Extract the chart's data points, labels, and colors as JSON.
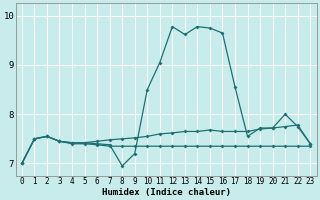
{
  "xlabel": "Humidex (Indice chaleur)",
  "background_color": "#c8ecec",
  "line_color": "#1e7070",
  "grid_color": "#ffffff",
  "xlim": [
    -0.5,
    23.5
  ],
  "ylim": [
    6.75,
    10.25
  ],
  "yticks": [
    7,
    8,
    9,
    10
  ],
  "xticks": [
    0,
    1,
    2,
    3,
    4,
    5,
    6,
    7,
    8,
    9,
    10,
    11,
    12,
    13,
    14,
    15,
    16,
    17,
    18,
    19,
    20,
    21,
    22,
    23
  ],
  "series1_x": [
    0,
    1,
    2,
    3,
    4,
    5,
    6,
    7,
    8,
    9,
    10,
    11,
    12,
    13,
    14,
    15,
    16,
    17,
    18,
    19,
    20,
    21,
    22,
    23
  ],
  "series1_y": [
    7.0,
    7.5,
    7.55,
    7.45,
    7.42,
    7.42,
    7.4,
    7.38,
    6.95,
    7.2,
    8.5,
    9.05,
    9.78,
    9.62,
    9.78,
    9.75,
    9.65,
    8.55,
    7.55,
    7.72,
    7.72,
    8.0,
    7.75,
    7.4
  ],
  "series2_x": [
    0,
    1,
    2,
    3,
    4,
    5,
    6,
    7,
    8,
    9,
    10,
    11,
    12,
    13,
    14,
    15,
    16,
    17,
    18,
    19,
    20,
    21,
    22,
    23
  ],
  "series2_y": [
    7.0,
    7.5,
    7.55,
    7.45,
    7.42,
    7.42,
    7.45,
    7.48,
    7.5,
    7.52,
    7.55,
    7.6,
    7.62,
    7.65,
    7.65,
    7.68,
    7.65,
    7.65,
    7.65,
    7.7,
    7.72,
    7.75,
    7.78,
    7.4
  ],
  "series3_x": [
    0,
    1,
    2,
    3,
    4,
    5,
    6,
    7,
    8,
    9,
    10,
    11,
    12,
    13,
    14,
    15,
    16,
    17,
    18,
    19,
    20,
    21,
    22,
    23
  ],
  "series3_y": [
    7.0,
    7.5,
    7.55,
    7.45,
    7.4,
    7.4,
    7.38,
    7.35,
    7.35,
    7.35,
    7.35,
    7.35,
    7.35,
    7.35,
    7.35,
    7.35,
    7.35,
    7.35,
    7.35,
    7.35,
    7.35,
    7.35,
    7.35,
    7.35
  ]
}
